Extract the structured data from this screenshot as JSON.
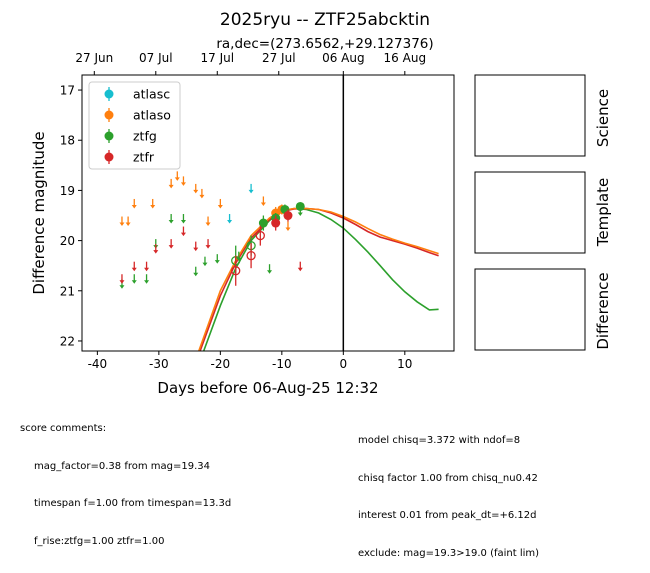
{
  "chart_data": {
    "type": "scatter",
    "title": "2025ryu -- ZTF25abcktin",
    "subtitle": "ra,dec=(273.6562,+29.127376)",
    "xlabel": "Days before 06-Aug-25 12:32",
    "ylabel": "Difference magnitude",
    "xlim": [
      -42.5,
      18
    ],
    "ylim": [
      22.2,
      16.7
    ],
    "y_inverted": true,
    "grid": false,
    "legend_position": "top-left",
    "x_ticks": [
      -40,
      -30,
      -20,
      -10,
      0,
      10
    ],
    "y_ticks": [
      17,
      18,
      19,
      20,
      21,
      22
    ],
    "top_axis": {
      "ticks": [
        {
          "x": -40.5,
          "label": "27 Jun"
        },
        {
          "x": -30.5,
          "label": "07 Jul"
        },
        {
          "x": -20.5,
          "label": "17 Jul"
        },
        {
          "x": -10.5,
          "label": "27 Jul"
        },
        {
          "x": 0,
          "label": "06 Aug"
        },
        {
          "x": 10,
          "label": "16 Aug"
        }
      ]
    },
    "vline_x": 0,
    "series": [
      {
        "name": "atlasc",
        "color": "#17becf",
        "upper_limits": [
          [
            -18.5,
            19.55
          ],
          [
            -15,
            18.95
          ]
        ],
        "detections": []
      },
      {
        "name": "atlaso",
        "color": "#ff7f0e",
        "upper_limits": [
          [
            -36,
            19.6
          ],
          [
            -35,
            19.6
          ],
          [
            -34,
            19.25
          ],
          [
            -31,
            19.25
          ],
          [
            -28,
            18.85
          ],
          [
            -27,
            18.7
          ],
          [
            -26,
            18.8
          ],
          [
            -24,
            18.95
          ],
          [
            -23,
            19.05
          ],
          [
            -22,
            19.6
          ],
          [
            -20,
            19.25
          ],
          [
            -13,
            19.2
          ],
          [
            -9,
            19.7
          ]
        ],
        "detections": [
          {
            "x": -11,
            "y": 19.45,
            "err": 0.12,
            "open": false
          },
          {
            "x": -10,
            "y": 19.38,
            "err": 0.1,
            "open": false
          }
        ]
      },
      {
        "name": "ztfg",
        "color": "#2ca02c",
        "upper_limits": [
          [
            -36,
            20.85
          ],
          [
            -34,
            20.75
          ],
          [
            -32,
            20.75
          ],
          [
            -30.5,
            20.05
          ],
          [
            -28,
            19.55
          ],
          [
            -26,
            19.55
          ],
          [
            -24,
            20.6
          ],
          [
            -22.5,
            20.4
          ],
          [
            -20.5,
            20.35
          ],
          [
            -17,
            20.3
          ],
          [
            -12,
            20.55
          ],
          [
            -7,
            19.4
          ]
        ],
        "detections": [
          {
            "x": -17.5,
            "y": 20.4,
            "err": 0.3,
            "open": true
          },
          {
            "x": -15,
            "y": 20.1,
            "err": 0.2,
            "open": true
          },
          {
            "x": -13,
            "y": 19.65,
            "err": 0.15,
            "open": false
          },
          {
            "x": -11,
            "y": 19.55,
            "err": 0.1,
            "open": false
          },
          {
            "x": -9.5,
            "y": 19.38,
            "err": 0.1,
            "open": false
          },
          {
            "x": -7,
            "y": 19.32,
            "err": 0.08,
            "open": false
          }
        ]
      },
      {
        "name": "ztfr",
        "color": "#d62728",
        "upper_limits": [
          [
            -36,
            20.75
          ],
          [
            -34,
            20.5
          ],
          [
            -32,
            20.5
          ],
          [
            -30.5,
            20.15
          ],
          [
            -28,
            20.05
          ],
          [
            -26,
            19.8
          ],
          [
            -24,
            20.1
          ],
          [
            -22,
            20.05
          ],
          [
            -7,
            20.5
          ]
        ],
        "detections": [
          {
            "x": -17.5,
            "y": 20.6,
            "err": 0.3,
            "open": true
          },
          {
            "x": -15,
            "y": 20.3,
            "err": 0.25,
            "open": true
          },
          {
            "x": -13.5,
            "y": 19.9,
            "err": 0.2,
            "open": true
          },
          {
            "x": -11,
            "y": 19.65,
            "err": 0.15,
            "open": false
          },
          {
            "x": -9,
            "y": 19.5,
            "err": 0.12,
            "open": false
          }
        ]
      }
    ],
    "model_curves": [
      {
        "name": "ztfg",
        "color": "#2ca02c",
        "points": [
          [
            -22.7,
            22.2
          ],
          [
            -20,
            21.3
          ],
          [
            -17.5,
            20.55
          ],
          [
            -15,
            20.0
          ],
          [
            -12,
            19.6
          ],
          [
            -10,
            19.42
          ],
          [
            -8,
            19.36
          ],
          [
            -6,
            19.38
          ],
          [
            -4,
            19.45
          ],
          [
            -2,
            19.58
          ],
          [
            0,
            19.75
          ],
          [
            2,
            19.98
          ],
          [
            4,
            20.23
          ],
          [
            6,
            20.5
          ],
          [
            8,
            20.78
          ],
          [
            10,
            21.02
          ],
          [
            12,
            21.22
          ],
          [
            14,
            21.38
          ],
          [
            15.5,
            21.37
          ]
        ]
      },
      {
        "name": "ztfr",
        "color": "#d62728",
        "points": [
          [
            -23.3,
            22.2
          ],
          [
            -20,
            21.1
          ],
          [
            -17.5,
            20.45
          ],
          [
            -15,
            19.95
          ],
          [
            -12,
            19.58
          ],
          [
            -10,
            19.42
          ],
          [
            -8,
            19.37
          ],
          [
            -6,
            19.36
          ],
          [
            -4,
            19.38
          ],
          [
            -2,
            19.45
          ],
          [
            0,
            19.55
          ],
          [
            2,
            19.68
          ],
          [
            4,
            19.82
          ],
          [
            6,
            19.93
          ],
          [
            8,
            20.0
          ],
          [
            10,
            20.07
          ],
          [
            12,
            20.15
          ],
          [
            14,
            20.24
          ],
          [
            15.5,
            20.3
          ]
        ]
      },
      {
        "name": "atlaso",
        "color": "#ff7f0e",
        "points": [
          [
            -23.5,
            22.2
          ],
          [
            -20,
            21.0
          ],
          [
            -17.5,
            20.4
          ],
          [
            -15,
            19.9
          ],
          [
            -12,
            19.55
          ],
          [
            -10,
            19.4
          ],
          [
            -8,
            19.36
          ],
          [
            -6,
            19.36
          ],
          [
            -4,
            19.38
          ],
          [
            -2,
            19.43
          ],
          [
            0,
            19.52
          ],
          [
            2,
            19.63
          ],
          [
            4,
            19.76
          ],
          [
            6,
            19.88
          ],
          [
            8,
            19.97
          ],
          [
            10,
            20.05
          ],
          [
            12,
            20.12
          ],
          [
            14,
            20.2
          ],
          [
            15.5,
            20.26
          ]
        ]
      }
    ]
  },
  "panels": {
    "science_label": "Science",
    "template_label": "Template",
    "difference_label": "Difference"
  },
  "comments": {
    "header": "score comments:",
    "left": [
      "mag_factor=0.38 from mag=19.34",
      "timespan f=1.00 from timespan=13.3d",
      "f_rise:ztfg=1.00 ztfr=1.00"
    ],
    "right": [
      "model chisq=3.372 with ndof=8",
      "chisq factor 1.00 from chisq_nu0.42",
      "interest 0.01 from peak_dt=+6.12d",
      "exclude: mag=19.3>19.0 (faint lim)"
    ]
  }
}
